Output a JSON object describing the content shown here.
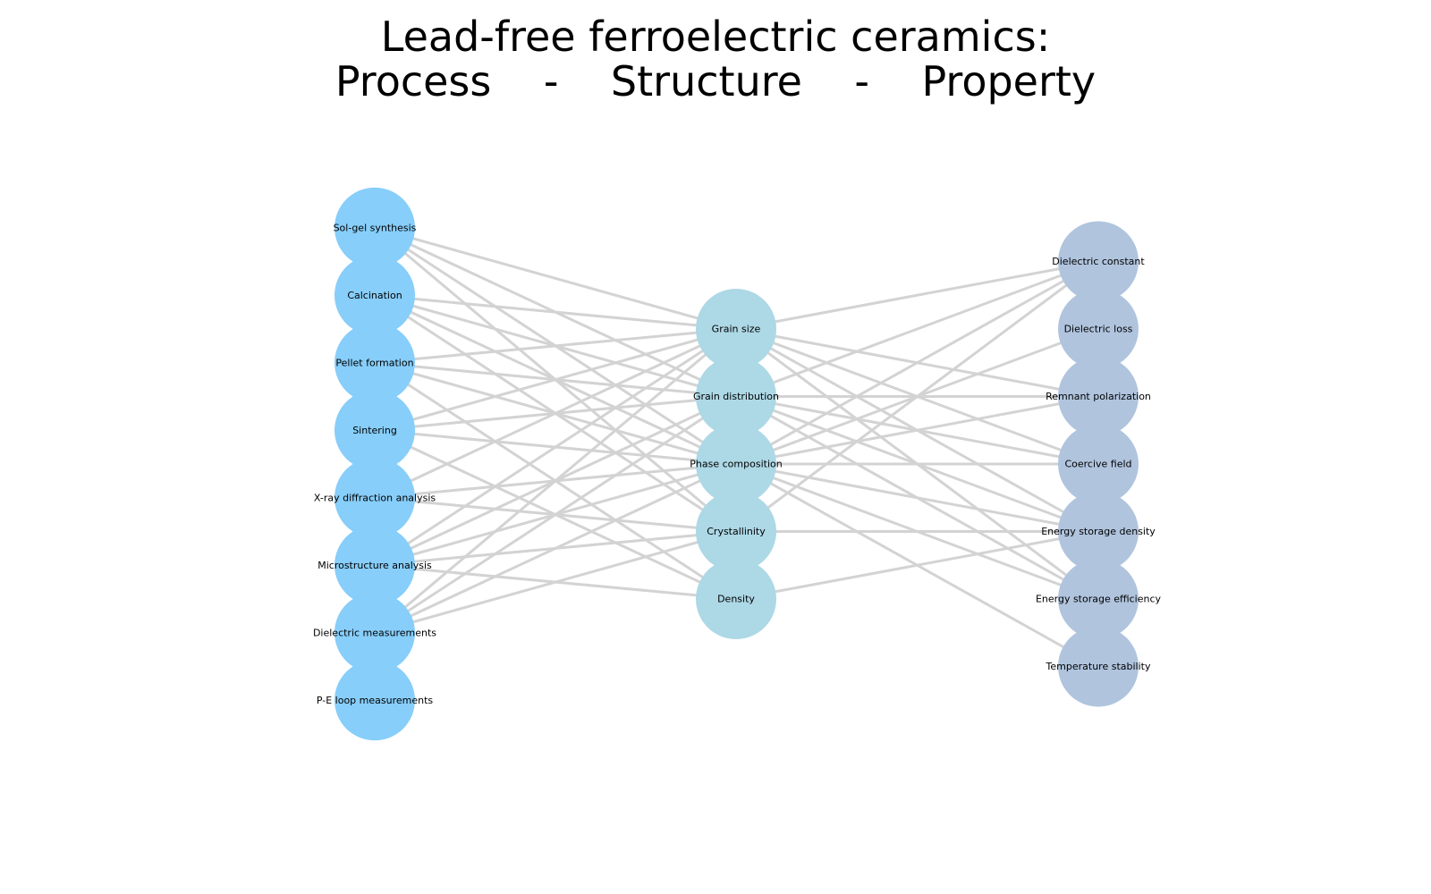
{
  "title": {
    "line1": "Lead-free ferroelectric ceramics:",
    "line2": "Process    -    Structure    -    Property"
  },
  "colors": {
    "process": "#87cefa",
    "structure": "#add8e6",
    "property": "#b0c4de",
    "edge": "#d3d3d3"
  },
  "columns": [
    {
      "key": "process",
      "nodes": [
        "Sol-gel synthesis",
        "Calcination",
        "Pellet formation",
        "Sintering",
        "X-ray diffraction analysis",
        "Microstructure analysis",
        "Dielectric measurements",
        "P-E loop measurements"
      ]
    },
    {
      "key": "structure",
      "nodes": [
        "Grain size",
        "Grain distribution",
        "Phase composition",
        "Crystallinity",
        "Density"
      ]
    },
    {
      "key": "property",
      "nodes": [
        "Dielectric constant",
        "Dielectric loss",
        "Remnant polarization",
        "Coercive field",
        "Energy storage density",
        "Energy storage efficiency",
        "Temperature stability"
      ]
    }
  ],
  "edges": [
    [
      "Sol-gel synthesis",
      "Grain size"
    ],
    [
      "Sol-gel synthesis",
      "Grain distribution"
    ],
    [
      "Sol-gel synthesis",
      "Phase composition"
    ],
    [
      "Sol-gel synthesis",
      "Crystallinity"
    ],
    [
      "Calcination",
      "Grain size"
    ],
    [
      "Calcination",
      "Grain distribution"
    ],
    [
      "Calcination",
      "Phase composition"
    ],
    [
      "Calcination",
      "Crystallinity"
    ],
    [
      "Pellet formation",
      "Grain size"
    ],
    [
      "Pellet formation",
      "Grain distribution"
    ],
    [
      "Pellet formation",
      "Phase composition"
    ],
    [
      "Pellet formation",
      "Density"
    ],
    [
      "Sintering",
      "Grain size"
    ],
    [
      "Sintering",
      "Grain distribution"
    ],
    [
      "Sintering",
      "Phase composition"
    ],
    [
      "Sintering",
      "Density"
    ],
    [
      "X-ray diffraction analysis",
      "Grain size"
    ],
    [
      "X-ray diffraction analysis",
      "Phase composition"
    ],
    [
      "X-ray diffraction analysis",
      "Crystallinity"
    ],
    [
      "Microstructure analysis",
      "Grain size"
    ],
    [
      "Microstructure analysis",
      "Grain distribution"
    ],
    [
      "Microstructure analysis",
      "Phase composition"
    ],
    [
      "Microstructure analysis",
      "Crystallinity"
    ],
    [
      "Microstructure analysis",
      "Density"
    ],
    [
      "Dielectric measurements",
      "Grain size"
    ],
    [
      "Dielectric measurements",
      "Grain distribution"
    ],
    [
      "Dielectric measurements",
      "Phase composition"
    ],
    [
      "Dielectric measurements",
      "Crystallinity"
    ],
    [
      "Grain size",
      "Dielectric constant"
    ],
    [
      "Grain size",
      "Remnant polarization"
    ],
    [
      "Grain size",
      "Coercive field"
    ],
    [
      "Grain size",
      "Energy storage density"
    ],
    [
      "Grain size",
      "Energy storage efficiency"
    ],
    [
      "Grain distribution",
      "Dielectric constant"
    ],
    [
      "Grain distribution",
      "Remnant polarization"
    ],
    [
      "Grain distribution",
      "Coercive field"
    ],
    [
      "Grain distribution",
      "Energy storage density"
    ],
    [
      "Grain distribution",
      "Energy storage efficiency"
    ],
    [
      "Phase composition",
      "Dielectric constant"
    ],
    [
      "Phase composition",
      "Dielectric loss"
    ],
    [
      "Phase composition",
      "Remnant polarization"
    ],
    [
      "Phase composition",
      "Coercive field"
    ],
    [
      "Phase composition",
      "Energy storage density"
    ],
    [
      "Phase composition",
      "Energy storage efficiency"
    ],
    [
      "Phase composition",
      "Temperature stability"
    ],
    [
      "Crystallinity",
      "Dielectric constant"
    ],
    [
      "Crystallinity",
      "Energy storage density"
    ],
    [
      "Density",
      "Energy storage density"
    ]
  ]
}
